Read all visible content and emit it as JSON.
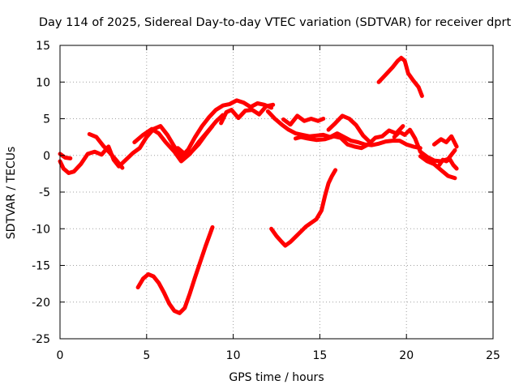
{
  "chart_data": {
    "type": "line",
    "title": "Day 114 of 2025, Sidereal Day-to-day VTEC variation (SDTVAR) for receiver dprt",
    "xlabel": "GPS time / hours",
    "ylabel": "SDTVAR / TECUs",
    "xlim": [
      0,
      25
    ],
    "ylim": [
      -25,
      15
    ],
    "xticks": [
      0,
      5,
      10,
      15,
      20,
      25
    ],
    "yticks": [
      -25,
      -20,
      -15,
      -10,
      -5,
      0,
      5,
      10,
      15
    ],
    "grid": true,
    "color": "#ff0000",
    "series": [
      {
        "name": "arc-main-1",
        "x": [
          0.0,
          0.2,
          0.5,
          0.8,
          1.2,
          1.6,
          2.0,
          2.4,
          2.8,
          3.1,
          3.4,
          3.8,
          4.2,
          4.6,
          5.0,
          5.4,
          5.8,
          6.2,
          6.6,
          7.0,
          7.4,
          7.8,
          8.2,
          8.6,
          9.0,
          9.4,
          9.8,
          10.2,
          10.6,
          11.0,
          11.4,
          11.8,
          12.2
        ],
        "y": [
          -0.8,
          -1.8,
          -2.4,
          -2.2,
          -1.2,
          0.2,
          0.5,
          0.1,
          1.2,
          -0.6,
          -1.5,
          -0.6,
          0.3,
          1.0,
          2.5,
          3.6,
          4.0,
          2.8,
          1.2,
          -0.2,
          0.8,
          2.5,
          4.0,
          5.2,
          6.2,
          6.8,
          7.0,
          7.5,
          7.2,
          6.6,
          7.1,
          6.9,
          6.5
        ]
      },
      {
        "name": "arc-main-2",
        "x": [
          0.0,
          0.3,
          0.6
        ],
        "y": [
          0.2,
          -0.3,
          -0.4
        ]
      },
      {
        "name": "arc-main-3",
        "x": [
          1.7,
          2.1,
          2.5,
          2.9,
          3.3,
          3.6
        ],
        "y": [
          2.9,
          2.5,
          1.3,
          0.3,
          -0.8,
          -1.7
        ]
      },
      {
        "name": "arc-main-4",
        "x": [
          4.3,
          4.8,
          5.3,
          5.7,
          6.1,
          6.6,
          7.0,
          7.5,
          8.0,
          8.5,
          9.0,
          9.4
        ],
        "y": [
          1.8,
          2.8,
          3.6,
          3.0,
          1.8,
          0.5,
          -0.8,
          0.2,
          1.8,
          3.2,
          4.6,
          5.5
        ]
      },
      {
        "name": "arc-main-5",
        "x": [
          6.8,
          7.2,
          7.6,
          8.0,
          8.4,
          8.8
        ],
        "y": [
          1.0,
          0.2,
          0.5,
          1.5,
          2.8,
          4.0
        ]
      },
      {
        "name": "arc-main-6",
        "x": [
          9.3,
          9.6,
          9.9,
          10.3,
          10.7,
          11.1,
          11.5,
          11.9,
          12.3
        ],
        "y": [
          4.4,
          5.9,
          6.2,
          5.1,
          6.1,
          6.2,
          5.6,
          6.7,
          6.9
        ]
      },
      {
        "name": "arc-main-7",
        "x": [
          12.0,
          12.4,
          12.8,
          13.2,
          13.6,
          14.0,
          14.4,
          14.8,
          15.2,
          15.6,
          16.0,
          16.4,
          16.8,
          17.2,
          17.6,
          18.0,
          18.4,
          18.8,
          19.2,
          19.6,
          20.0,
          20.4,
          20.8
        ],
        "y": [
          6.0,
          5.0,
          4.2,
          3.5,
          3.0,
          2.8,
          2.6,
          2.7,
          2.8,
          2.5,
          3.0,
          2.5,
          2.0,
          1.8,
          1.5,
          1.4,
          1.6,
          1.9,
          2.0,
          2.0,
          1.5,
          1.2,
          1.0
        ]
      },
      {
        "name": "arc-main-8",
        "x": [
          12.9,
          13.3,
          13.7,
          14.1,
          14.5,
          14.9,
          15.2
        ],
        "y": [
          4.9,
          4.2,
          5.4,
          4.7,
          5.0,
          4.7,
          5.0
        ]
      },
      {
        "name": "arc-main-9",
        "x": [
          13.6,
          13.9,
          14.3,
          14.8,
          15.3,
          15.8,
          16.2,
          16.6,
          17.0,
          17.4,
          17.8,
          18.2,
          18.6,
          19.0,
          19.4,
          19.8
        ],
        "y": [
          2.3,
          2.5,
          2.3,
          2.1,
          2.2,
          2.6,
          2.4,
          1.5,
          1.2,
          1.0,
          1.5,
          2.4,
          2.6,
          3.4,
          3.0,
          4.0
        ]
      },
      {
        "name": "arc-main-10",
        "x": [
          15.5,
          15.9,
          16.3,
          16.7,
          17.1,
          17.5,
          17.9
        ],
        "y": [
          3.5,
          4.4,
          5.4,
          5.0,
          4.1,
          2.7,
          1.8
        ]
      },
      {
        "name": "arc-main-11",
        "x": [
          19.3,
          19.6,
          19.9,
          20.2,
          20.5,
          20.8,
          21.2,
          21.6,
          22.0,
          22.4,
          22.8
        ],
        "y": [
          2.5,
          3.2,
          2.8,
          3.5,
          2.3,
          0.5,
          -0.2,
          -0.7,
          -0.8,
          -0.5,
          0.7
        ]
      },
      {
        "name": "arc-main-12",
        "x": [
          20.8,
          21.2,
          21.6,
          22.0,
          22.4,
          22.8
        ],
        "y": [
          -0.1,
          -0.8,
          -1.2,
          -2.0,
          -2.8,
          -3.1
        ]
      },
      {
        "name": "arc-main-13",
        "x": [
          21.6,
          22.0,
          22.3,
          22.6,
          22.9
        ],
        "y": [
          1.5,
          2.2,
          1.8,
          2.6,
          1.2
        ]
      },
      {
        "name": "arc-right-14",
        "x": [
          21.9,
          22.1,
          22.3,
          22.5,
          22.7,
          22.9
        ],
        "y": [
          -1.3,
          -0.6,
          -0.8,
          -0.5,
          -1.3,
          -1.8
        ]
      },
      {
        "name": "arc-low-a",
        "x": [
          4.5,
          4.8,
          5.1,
          5.4,
          5.7,
          6.0,
          6.3,
          6.6,
          6.9,
          7.2,
          7.5,
          7.8,
          8.1,
          8.4,
          8.8
        ],
        "y": [
          -18.0,
          -16.8,
          -16.2,
          -16.5,
          -17.4,
          -18.7,
          -20.2,
          -21.2,
          -21.5,
          -20.8,
          -18.8,
          -16.6,
          -14.5,
          -12.4,
          -9.8
        ]
      },
      {
        "name": "arc-low-b",
        "x": [
          12.2,
          12.5,
          12.8,
          13.0,
          13.3,
          13.6,
          13.9,
          14.2,
          14.5,
          14.8,
          15.1,
          15.3,
          15.5,
          15.7,
          15.9
        ],
        "y": [
          -10.0,
          -11.0,
          -11.8,
          -12.3,
          -11.8,
          -11.1,
          -10.4,
          -9.7,
          -9.2,
          -8.7,
          -7.5,
          -5.5,
          -3.8,
          -2.8,
          -2.0
        ]
      },
      {
        "name": "arc-high-c",
        "x": [
          18.4,
          18.8,
          19.2,
          19.5,
          19.7,
          19.9,
          20.1,
          20.4,
          20.7,
          20.9
        ],
        "y": [
          10.0,
          11.0,
          12.0,
          12.9,
          13.3,
          12.9,
          11.2,
          10.2,
          9.3,
          8.1
        ]
      }
    ]
  }
}
